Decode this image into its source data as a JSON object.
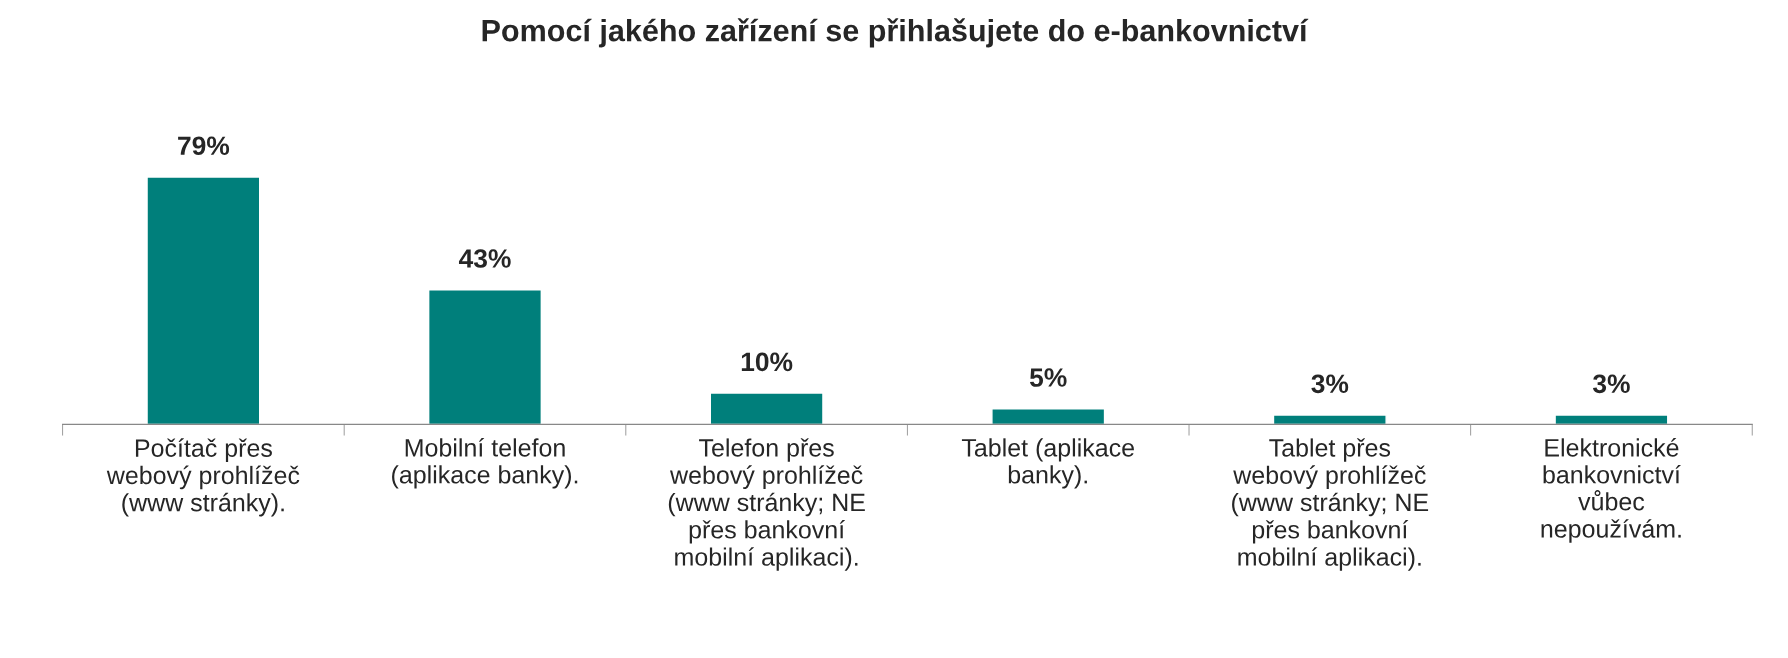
{
  "chart_data": {
    "type": "bar",
    "title": "Pomocí jakého zařízení se přihlašujete do e-bankovnictví",
    "categories": [
      "Počítač přes\nwebový prohlížeč\n(www stránky).",
      "Mobilní telefon\n(aplikace banky).",
      "Telefon přes\nwebový prohlížeč\n(www stránky; NE\npřes bankovní\nmobilní aplikaci).",
      "Tablet (aplikace\nbanky).",
      "Tablet přes\nwebový prohlížeč\n(www stránky; NE\npřes bankovní\nmobilní aplikaci).",
      "Elektronické\nbankovnictví\nvůbec\nnepoužívám."
    ],
    "values": [
      79,
      43,
      10,
      5,
      3,
      3
    ],
    "value_labels": [
      "79%",
      "43%",
      "10%",
      "5%",
      "3%",
      "3%"
    ],
    "color": "#007f7b",
    "grid": false,
    "legend": false
  }
}
